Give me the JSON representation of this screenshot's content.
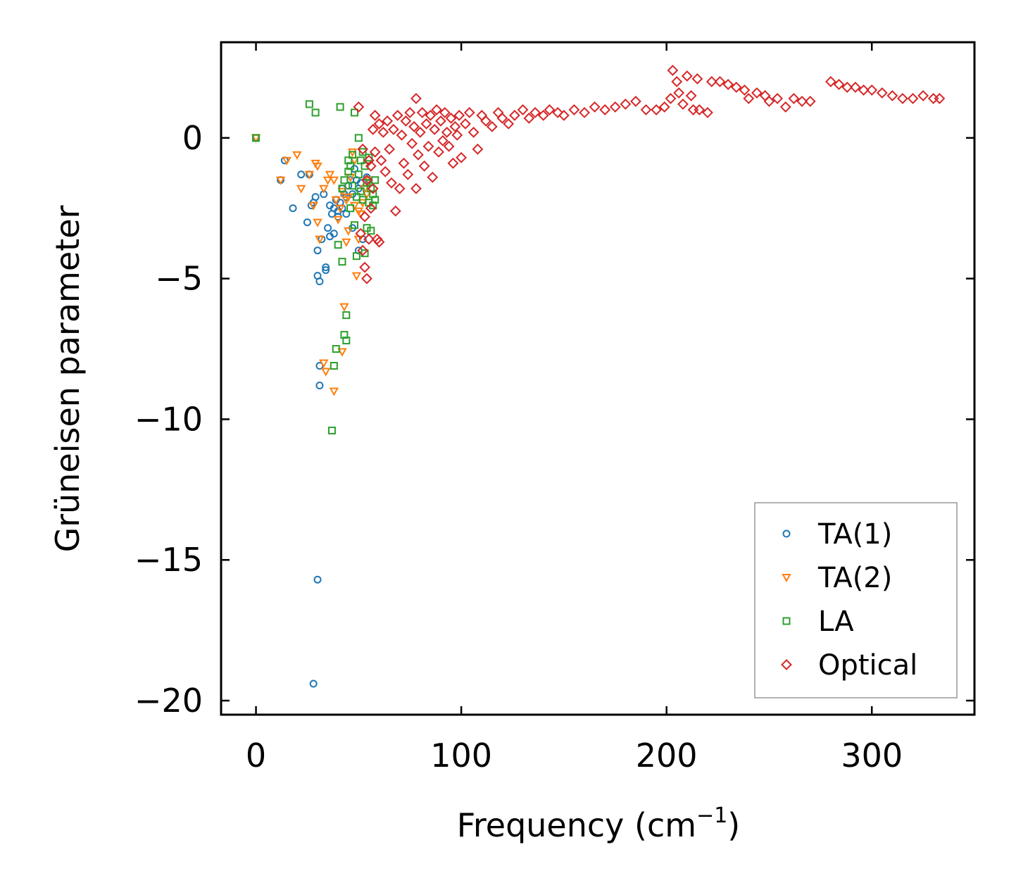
{
  "chart_data": {
    "type": "scatter",
    "title": "",
    "xlabel": "Frequency (cm",
    "xlabel_sup": "−1",
    "xlabel_end": ")",
    "ylabel": "Grüneisen parameter",
    "xlim": [
      -17,
      350
    ],
    "ylim": [
      -20.5,
      3.4
    ],
    "xticks": [
      0,
      100,
      200,
      300
    ],
    "xtick_labels": [
      "0",
      "100",
      "200",
      "300"
    ],
    "yticks": [
      0,
      -5,
      -10,
      -15,
      -20
    ],
    "ytick_labels": [
      "0",
      "−5",
      "−10",
      "−15",
      "−20"
    ],
    "grid": false,
    "legend_position": "bottom-right",
    "series": [
      {
        "name": "TA(1)",
        "marker": "circle",
        "color": "#1f77b4",
        "points": [
          [
            0,
            0
          ],
          [
            12,
            -1.5
          ],
          [
            14,
            -0.8
          ],
          [
            18,
            -2.5
          ],
          [
            22,
            -1.3
          ],
          [
            25,
            -3.0
          ],
          [
            26,
            -1.3
          ],
          [
            27,
            -2.4
          ],
          [
            28,
            -2.3
          ],
          [
            29,
            -2.1
          ],
          [
            30,
            -4.0
          ],
          [
            30,
            -4.9
          ],
          [
            31,
            -5.1
          ],
          [
            31,
            -8.1
          ],
          [
            31,
            -8.8
          ],
          [
            32,
            -3.6
          ],
          [
            33,
            -2.0
          ],
          [
            34,
            -4.6
          ],
          [
            34,
            -4.7
          ],
          [
            35,
            -3.2
          ],
          [
            36,
            -2.4
          ],
          [
            36,
            -3.5
          ],
          [
            37,
            -2.7
          ],
          [
            38,
            -2.5
          ],
          [
            38,
            -3.4
          ],
          [
            39,
            -2.2
          ],
          [
            40,
            -2.6
          ],
          [
            40,
            -2.8
          ],
          [
            41,
            -2.3
          ],
          [
            42,
            -1.8
          ],
          [
            42,
            -2.5
          ],
          [
            43,
            -2.0
          ],
          [
            44,
            -2.1
          ],
          [
            44,
            -2.7
          ],
          [
            45,
            -1.7
          ],
          [
            46,
            -1.5
          ],
          [
            47,
            -2.0
          ],
          [
            47,
            -3.2
          ],
          [
            48,
            -1.1
          ],
          [
            49,
            -1.5
          ],
          [
            50,
            -1.8
          ],
          [
            50,
            -4.0
          ],
          [
            51,
            -1.6
          ],
          [
            52,
            -3.6
          ],
          [
            54,
            -1.4
          ],
          [
            55,
            -1.5
          ],
          [
            30,
            -15.7
          ],
          [
            28,
            -19.4
          ]
        ]
      },
      {
        "name": "TA(2)",
        "marker": "triangle-down",
        "color": "#ff7f0e",
        "points": [
          [
            0,
            0
          ],
          [
            12,
            -1.5
          ],
          [
            15,
            -0.8
          ],
          [
            20,
            -0.6
          ],
          [
            22,
            -1.8
          ],
          [
            26,
            -1.3
          ],
          [
            28,
            -2.4
          ],
          [
            29,
            -0.9
          ],
          [
            30,
            -1.0
          ],
          [
            30,
            -3.0
          ],
          [
            31,
            -3.6
          ],
          [
            33,
            -1.8
          ],
          [
            33,
            -8.0
          ],
          [
            34,
            -8.3
          ],
          [
            35,
            -1.5
          ],
          [
            36,
            -1.3
          ],
          [
            38,
            -1.5
          ],
          [
            38,
            -9.0
          ],
          [
            39,
            -2.2
          ],
          [
            40,
            -2.9
          ],
          [
            41,
            -2.5
          ],
          [
            42,
            -1.9
          ],
          [
            42,
            -7.6
          ],
          [
            43,
            -6.0
          ],
          [
            44,
            -2.2
          ],
          [
            44,
            -3.7
          ],
          [
            45,
            -2.1
          ],
          [
            45,
            -3.3
          ],
          [
            46,
            -1.4
          ],
          [
            47,
            -0.5
          ],
          [
            48,
            -0.8
          ],
          [
            48,
            -2.4
          ],
          [
            49,
            -4.9
          ],
          [
            50,
            -2.6
          ],
          [
            50,
            -3.6
          ],
          [
            51,
            -2.7
          ],
          [
            52,
            -2.3
          ],
          [
            53,
            -1.8
          ],
          [
            54,
            -2.0
          ],
          [
            55,
            -1.5
          ]
        ]
      },
      {
        "name": "LA",
        "marker": "square",
        "color": "#2ca02c",
        "points": [
          [
            0,
            0
          ],
          [
            26,
            1.2
          ],
          [
            29,
            0.9
          ],
          [
            37,
            -10.4
          ],
          [
            38,
            -8.1
          ],
          [
            39,
            -7.5
          ],
          [
            40,
            -3.8
          ],
          [
            41,
            1.1
          ],
          [
            42,
            -1.8
          ],
          [
            42,
            -4.4
          ],
          [
            43,
            -1.5
          ],
          [
            43,
            -7.0
          ],
          [
            44,
            -7.2
          ],
          [
            44,
            -6.3
          ],
          [
            45,
            -1.2
          ],
          [
            45,
            -0.8
          ],
          [
            46,
            -1.0
          ],
          [
            46,
            -2.5
          ],
          [
            47,
            -1.7
          ],
          [
            47,
            -0.6
          ],
          [
            48,
            0.9
          ],
          [
            48,
            -3.1
          ],
          [
            49,
            -2.1
          ],
          [
            49,
            -4.2
          ],
          [
            50,
            -1.3
          ],
          [
            50,
            0.0
          ],
          [
            51,
            -1.9
          ],
          [
            51,
            -0.8
          ],
          [
            52,
            -2.2
          ],
          [
            52,
            -0.5
          ],
          [
            53,
            -1.0
          ],
          [
            53,
            -4.1
          ],
          [
            54,
            -1.6
          ],
          [
            54,
            -3.2
          ],
          [
            55,
            -2.3
          ],
          [
            55,
            -0.7
          ],
          [
            56,
            -1.8
          ],
          [
            56,
            -3.3
          ],
          [
            57,
            -2.0
          ],
          [
            57,
            -2.4
          ],
          [
            58,
            -1.5
          ],
          [
            58,
            -2.2
          ]
        ]
      },
      {
        "name": "Optical",
        "marker": "diamond",
        "color": "#d62728",
        "points": [
          [
            50,
            1.1
          ],
          [
            51,
            -3.4
          ],
          [
            52,
            -0.4
          ],
          [
            52,
            -4.0
          ],
          [
            53,
            -2.8
          ],
          [
            53,
            -4.6
          ],
          [
            54,
            -1.5
          ],
          [
            54,
            -5.0
          ],
          [
            55,
            -0.8
          ],
          [
            55,
            -3.6
          ],
          [
            56,
            -1.0
          ],
          [
            56,
            -2.5
          ],
          [
            57,
            0.3
          ],
          [
            57,
            -1.8
          ],
          [
            58,
            0.8
          ],
          [
            58,
            -0.5
          ],
          [
            59,
            -3.6
          ],
          [
            60,
            0.5
          ],
          [
            60,
            -3.7
          ],
          [
            61,
            -0.8
          ],
          [
            62,
            0.2
          ],
          [
            63,
            -1.2
          ],
          [
            64,
            0.6
          ],
          [
            65,
            -0.4
          ],
          [
            66,
            -1.6
          ],
          [
            67,
            0.3
          ],
          [
            68,
            -2.6
          ],
          [
            69,
            0.8
          ],
          [
            70,
            -1.8
          ],
          [
            71,
            0.1
          ],
          [
            72,
            -0.9
          ],
          [
            73,
            0.6
          ],
          [
            74,
            -1.3
          ],
          [
            75,
            0.9
          ],
          [
            76,
            -0.2
          ],
          [
            77,
            0.4
          ],
          [
            78,
            1.4
          ],
          [
            78,
            -1.8
          ],
          [
            79,
            -0.6
          ],
          [
            80,
            0.2
          ],
          [
            81,
            0.9
          ],
          [
            82,
            -1.0
          ],
          [
            83,
            0.5
          ],
          [
            84,
            -0.3
          ],
          [
            85,
            0.8
          ],
          [
            86,
            -1.4
          ],
          [
            87,
            0.3
          ],
          [
            88,
            1.0
          ],
          [
            89,
            -0.5
          ],
          [
            90,
            0.6
          ],
          [
            91,
            -0.1
          ],
          [
            92,
            0.9
          ],
          [
            93,
            0.2
          ],
          [
            94,
            -0.3
          ],
          [
            95,
            0.7
          ],
          [
            96,
            -0.9
          ],
          [
            97,
            0.4
          ],
          [
            98,
            0.1
          ],
          [
            99,
            0.8
          ],
          [
            100,
            -0.7
          ],
          [
            102,
            0.5
          ],
          [
            104,
            0.9
          ],
          [
            106,
            0.2
          ],
          [
            108,
            -0.4
          ],
          [
            110,
            0.8
          ],
          [
            112,
            0.6
          ],
          [
            115,
            0.4
          ],
          [
            118,
            0.9
          ],
          [
            120,
            0.7
          ],
          [
            123,
            0.5
          ],
          [
            126,
            0.8
          ],
          [
            130,
            1.0
          ],
          [
            133,
            0.7
          ],
          [
            136,
            0.9
          ],
          [
            140,
            0.8
          ],
          [
            143,
            1.0
          ],
          [
            147,
            0.9
          ],
          [
            150,
            0.8
          ],
          [
            155,
            1.0
          ],
          [
            160,
            0.9
          ],
          [
            165,
            1.1
          ],
          [
            170,
            1.0
          ],
          [
            175,
            1.1
          ],
          [
            180,
            1.2
          ],
          [
            185,
            1.3
          ],
          [
            190,
            1.0
          ],
          [
            195,
            1.0
          ],
          [
            199,
            1.1
          ],
          [
            202,
            1.4
          ],
          [
            203,
            2.4
          ],
          [
            205,
            2.0
          ],
          [
            206,
            1.6
          ],
          [
            208,
            1.2
          ],
          [
            210,
            2.2
          ],
          [
            212,
            1.5
          ],
          [
            213,
            1.0
          ],
          [
            215,
            2.1
          ],
          [
            216,
            1.0
          ],
          [
            220,
            0.9
          ],
          [
            222,
            2.0
          ],
          [
            226,
            2.0
          ],
          [
            230,
            1.9
          ],
          [
            234,
            1.8
          ],
          [
            238,
            1.7
          ],
          [
            240,
            1.4
          ],
          [
            244,
            1.6
          ],
          [
            248,
            1.5
          ],
          [
            250,
            1.3
          ],
          [
            254,
            1.4
          ],
          [
            258,
            1.1
          ],
          [
            262,
            1.4
          ],
          [
            266,
            1.3
          ],
          [
            270,
            1.3
          ],
          [
            280,
            2.0
          ],
          [
            284,
            1.9
          ],
          [
            288,
            1.8
          ],
          [
            292,
            1.8
          ],
          [
            296,
            1.7
          ],
          [
            300,
            1.7
          ],
          [
            305,
            1.6
          ],
          [
            310,
            1.5
          ],
          [
            315,
            1.4
          ],
          [
            320,
            1.4
          ],
          [
            325,
            1.5
          ],
          [
            330,
            1.4
          ],
          [
            333,
            1.4
          ]
        ]
      }
    ]
  }
}
